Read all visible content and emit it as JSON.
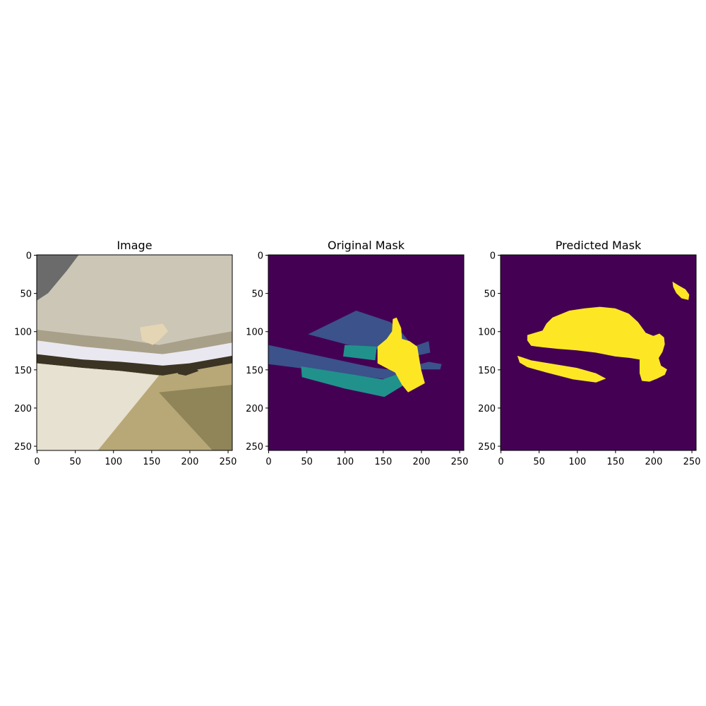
{
  "chart_data": [
    {
      "type": "heatmap",
      "title": "Image",
      "xlim": [
        0,
        256
      ],
      "ylim": [
        256,
        0
      ],
      "xticks": [
        0,
        50,
        100,
        150,
        200,
        250
      ],
      "yticks": [
        0,
        50,
        100,
        150,
        200,
        250
      ],
      "colors": {
        "paint": "#ccc6b6",
        "paint_dark": "#a9a08a",
        "bumper": "#e9e8f0",
        "floor": "#b8a877",
        "floor_light": "#e6e1d0",
        "shadow": "#8f8558",
        "dark": "#3b3424",
        "peel": "#e4d6b4",
        "grille": "#6b6b6b"
      }
    },
    {
      "type": "heatmap",
      "title": "Original Mask",
      "xlim": [
        0,
        256
      ],
      "ylim": [
        256,
        0
      ],
      "xticks": [
        0,
        50,
        100,
        150,
        200,
        250
      ],
      "yticks": [
        0,
        50,
        100,
        150,
        200,
        250
      ],
      "colormap": "viridis",
      "colors": {
        "background": "#440154",
        "class1": "#3b528b",
        "class2": "#21918c",
        "class3": "#fde725"
      },
      "regions": [
        {
          "class": "class1",
          "polygon": [
            [
              0,
              118
            ],
            [
              0,
              143
            ],
            [
              55,
              150
            ],
            [
              155,
              163
            ],
            [
              175,
              155
            ],
            [
              200,
              150
            ],
            [
              225,
              150
            ],
            [
              227,
              143
            ],
            [
              210,
              140
            ],
            [
              180,
              148
            ],
            [
              158,
              150
            ],
            [
              140,
              148
            ],
            [
              0,
              118
            ]
          ]
        },
        {
          "class": "class1",
          "polygon": [
            [
              52,
              104
            ],
            [
              115,
              73
            ],
            [
              160,
              88
            ],
            [
              175,
              102
            ],
            [
              190,
              120
            ],
            [
              210,
              113
            ],
            [
              212,
              128
            ],
            [
              190,
              133
            ],
            [
              170,
              128
            ],
            [
              150,
              125
            ],
            [
              125,
              120
            ],
            [
              105,
              118
            ],
            [
              52,
              104
            ]
          ]
        },
        {
          "class": "class2",
          "polygon": [
            [
              100,
              118
            ],
            [
              142,
              120
            ],
            [
              140,
              138
            ],
            [
              98,
              133
            ]
          ]
        },
        {
          "class": "class2",
          "polygon": [
            [
              43,
              146
            ],
            [
              100,
              155
            ],
            [
              150,
              163
            ],
            [
              170,
              156
            ],
            [
              178,
              170
            ],
            [
              152,
              186
            ],
            [
              100,
              175
            ],
            [
              44,
              160
            ]
          ]
        },
        {
          "class": "class3",
          "polygon": [
            [
              143,
              120
            ],
            [
              155,
              110
            ],
            [
              162,
              100
            ],
            [
              163,
              84
            ],
            [
              168,
              82
            ],
            [
              174,
              96
            ],
            [
              175,
              110
            ],
            [
              185,
              113
            ],
            [
              195,
              120
            ],
            [
              200,
              150
            ],
            [
              205,
              168
            ],
            [
              183,
              180
            ],
            [
              175,
              170
            ],
            [
              166,
              154
            ],
            [
              158,
              150
            ],
            [
              143,
              142
            ]
          ]
        }
      ]
    },
    {
      "type": "heatmap",
      "title": "Predicted Mask",
      "xlim": [
        0,
        256
      ],
      "ylim": [
        256,
        0
      ],
      "xticks": [
        0,
        50,
        100,
        150,
        200,
        250
      ],
      "yticks": [
        0,
        50,
        100,
        150,
        200,
        250
      ],
      "colormap": "viridis",
      "colors": {
        "background": "#440154",
        "class1": "#fde725"
      },
      "regions": [
        {
          "class": "class1",
          "polygon": [
            [
              35,
              105
            ],
            [
              55,
              99
            ],
            [
              60,
              90
            ],
            [
              68,
              82
            ],
            [
              90,
              73
            ],
            [
              110,
              70
            ],
            [
              130,
              68
            ],
            [
              150,
              70
            ],
            [
              168,
              77
            ],
            [
              180,
              88
            ],
            [
              190,
              102
            ],
            [
              200,
              106
            ],
            [
              208,
              103
            ],
            [
              214,
              108
            ],
            [
              215,
              117
            ],
            [
              212,
              127
            ],
            [
              207,
              135
            ],
            [
              210,
              145
            ],
            [
              218,
              150
            ],
            [
              215,
              157
            ],
            [
              205,
              162
            ],
            [
              195,
              166
            ],
            [
              185,
              165
            ],
            [
              182,
              155
            ],
            [
              182,
              137
            ],
            [
              170,
              135
            ],
            [
              150,
              133
            ],
            [
              125,
              128
            ],
            [
              100,
              125
            ],
            [
              75,
              123
            ],
            [
              55,
              121
            ],
            [
              40,
              119
            ],
            [
              35,
              112
            ]
          ]
        },
        {
          "class": "class1",
          "polygon": [
            [
              22,
              132
            ],
            [
              40,
              138
            ],
            [
              70,
              143
            ],
            [
              100,
              148
            ],
            [
              125,
              155
            ],
            [
              138,
              162
            ],
            [
              125,
              167
            ],
            [
              95,
              163
            ],
            [
              60,
              154
            ],
            [
              35,
              147
            ],
            [
              25,
              141
            ]
          ]
        },
        {
          "class": "class1",
          "polygon": [
            [
              225,
              35
            ],
            [
              233,
              40
            ],
            [
              242,
              45
            ],
            [
              247,
              52
            ],
            [
              246,
              59
            ],
            [
              237,
              57
            ],
            [
              230,
              50
            ],
            [
              226,
              42
            ]
          ]
        }
      ]
    }
  ]
}
